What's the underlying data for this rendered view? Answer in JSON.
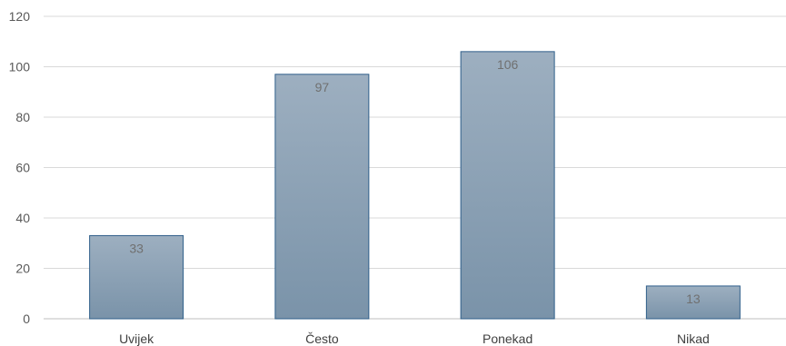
{
  "chart_data": {
    "type": "bar",
    "categories": [
      "Uvijek",
      "Često",
      "Ponekad",
      "Nikad"
    ],
    "values": [
      33,
      97,
      106,
      13
    ],
    "title": "",
    "xlabel": "",
    "ylabel": "",
    "ylim": [
      0,
      120
    ],
    "yticks": [
      0,
      20,
      40,
      60,
      80,
      100,
      120
    ],
    "grid": true,
    "legend": "none",
    "colors": {
      "bar_top": "#9dafc0",
      "bar_bottom": "#7a93a9",
      "bar_border": "#2f5f8a",
      "grid": "#d9d9d9"
    }
  }
}
